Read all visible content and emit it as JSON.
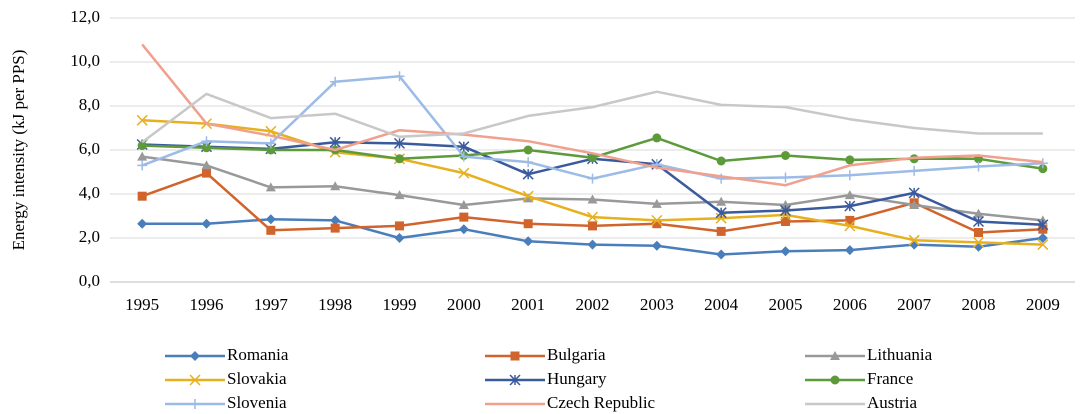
{
  "chart_data": {
    "type": "line",
    "ylabel": "Energy intensity (kJ per PPS)",
    "categories": [
      "1995",
      "1996",
      "1997",
      "1998",
      "1999",
      "2000",
      "2001",
      "2002",
      "2003",
      "2004",
      "2005",
      "2006",
      "2007",
      "2008",
      "2009"
    ],
    "ylim": [
      0,
      12
    ],
    "yticks": [
      {
        "value": 0,
        "label": "0,0"
      },
      {
        "value": 2,
        "label": "2,0"
      },
      {
        "value": 4,
        "label": "4,0"
      },
      {
        "value": 6,
        "label": "6,0"
      },
      {
        "value": 8,
        "label": "8,0"
      },
      {
        "value": 10,
        "label": "10,0"
      },
      {
        "value": 12,
        "label": "12,0"
      }
    ],
    "grid": true,
    "legend": "bottom",
    "series": [
      {
        "name": "Romania",
        "color": "#4a7ebb",
        "marker": "diamond",
        "values": [
          2.65,
          2.65,
          2.85,
          2.8,
          2.0,
          2.4,
          1.85,
          1.7,
          1.65,
          1.25,
          1.4,
          1.45,
          1.7,
          1.6,
          2.0
        ]
      },
      {
        "name": "Bulgaria",
        "color": "#d0642c",
        "marker": "square",
        "values": [
          3.9,
          4.95,
          2.35,
          2.45,
          2.55,
          2.95,
          2.65,
          2.55,
          2.65,
          2.3,
          2.75,
          2.8,
          3.6,
          2.25,
          2.4
        ]
      },
      {
        "name": "Lithuania",
        "color": "#999999",
        "marker": "triangle",
        "values": [
          5.7,
          5.3,
          4.3,
          4.35,
          3.95,
          3.5,
          3.8,
          3.75,
          3.55,
          3.65,
          3.5,
          3.95,
          3.5,
          3.1,
          2.8
        ]
      },
      {
        "name": "Slovakia",
        "color": "#e6b01f",
        "marker": "x",
        "values": [
          7.35,
          7.2,
          6.85,
          5.9,
          5.6,
          4.95,
          3.9,
          2.95,
          2.8,
          2.9,
          3.05,
          2.55,
          1.9,
          1.8,
          1.7
        ]
      },
      {
        "name": "Hungary",
        "color": "#3a5a9e",
        "marker": "asterisk",
        "values": [
          6.25,
          6.15,
          6.05,
          6.35,
          6.3,
          6.15,
          4.9,
          5.6,
          5.35,
          3.15,
          3.25,
          3.45,
          4.05,
          2.75,
          2.6
        ]
      },
      {
        "name": "France",
        "color": "#5c9a3a",
        "marker": "circle",
        "values": [
          6.2,
          6.1,
          6.0,
          6.0,
          5.6,
          5.75,
          6.0,
          5.65,
          6.55,
          5.5,
          5.75,
          5.55,
          5.6,
          5.6,
          5.15
        ]
      },
      {
        "name": "Slovenia",
        "color": "#9cbbe6",
        "marker": "plus",
        "values": [
          5.3,
          6.4,
          6.3,
          9.1,
          9.35,
          5.7,
          5.45,
          4.7,
          5.35,
          4.7,
          4.75,
          4.85,
          5.05,
          5.25,
          5.4
        ]
      },
      {
        "name": "Czech Republic",
        "color": "#f0a08c",
        "marker": "none",
        "values": [
          10.8,
          7.2,
          6.65,
          6.0,
          6.9,
          6.7,
          6.4,
          5.85,
          5.2,
          4.8,
          4.4,
          5.3,
          5.65,
          5.75,
          5.45
        ]
      },
      {
        "name": "Austria",
        "color": "#c8c8c8",
        "marker": "none",
        "values": [
          6.35,
          8.55,
          7.45,
          7.65,
          6.6,
          6.75,
          7.55,
          7.95,
          8.65,
          8.05,
          7.95,
          7.4,
          7.0,
          6.75,
          6.75
        ]
      }
    ]
  }
}
